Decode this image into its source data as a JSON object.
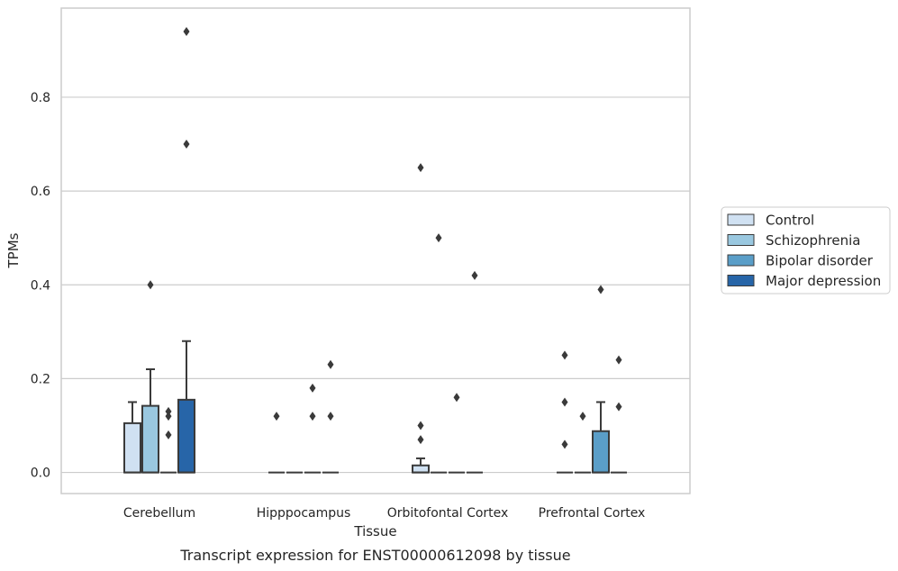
{
  "chart_data": {
    "type": "box",
    "xlabel": "Tissue",
    "ylabel": "TPMs",
    "caption": "Transcript expression for ENST00000612098 by tissue",
    "ylim": [
      -0.045,
      0.99
    ],
    "yticks": [
      "0.0",
      "0.2",
      "0.4",
      "0.6",
      "0.8"
    ],
    "yticks_values": [
      0.0,
      0.2,
      0.4,
      0.6,
      0.8
    ],
    "grid": "horizontal",
    "legend_position": "right",
    "categories": [
      "Cerebellum",
      "Hipppocampus",
      "Orbitofontal Cortex",
      "Prefrontal Cortex"
    ],
    "series": [
      {
        "name": "Control",
        "color": "#d0e1f2",
        "boxes": [
          {
            "q1": 0.0,
            "median": 0.0,
            "q3": 0.105,
            "whisker_low": 0.0,
            "whisker_high": 0.15,
            "outliers": []
          },
          {
            "q1": 0.0,
            "median": 0.0,
            "q3": 0.0,
            "whisker_low": 0.0,
            "whisker_high": 0.0,
            "outliers": [
              0.12
            ]
          },
          {
            "q1": 0.0,
            "median": 0.0,
            "q3": 0.015,
            "whisker_low": 0.0,
            "whisker_high": 0.03,
            "outliers": [
              0.07,
              0.1,
              0.65
            ]
          },
          {
            "q1": 0.0,
            "median": 0.0,
            "q3": 0.0,
            "whisker_low": 0.0,
            "whisker_high": 0.0,
            "outliers": [
              0.06,
              0.15,
              0.25
            ]
          }
        ]
      },
      {
        "name": "Schizophrenia",
        "color": "#9ac8e0",
        "boxes": [
          {
            "q1": 0.0,
            "median": 0.0,
            "q3": 0.142,
            "whisker_low": 0.0,
            "whisker_high": 0.22,
            "outliers": [
              0.4
            ]
          },
          {
            "q1": 0.0,
            "median": 0.0,
            "q3": 0.0,
            "whisker_low": 0.0,
            "whisker_high": 0.0,
            "outliers": []
          },
          {
            "q1": 0.0,
            "median": 0.0,
            "q3": 0.0,
            "whisker_low": 0.0,
            "whisker_high": 0.0,
            "outliers": [
              0.5
            ]
          },
          {
            "q1": 0.0,
            "median": 0.0,
            "q3": 0.0,
            "whisker_low": 0.0,
            "whisker_high": 0.0,
            "outliers": [
              0.12
            ]
          }
        ]
      },
      {
        "name": "Bipolar disorder",
        "color": "#5a9ec8",
        "boxes": [
          {
            "q1": 0.0,
            "median": 0.0,
            "q3": 0.0,
            "whisker_low": 0.0,
            "whisker_high": 0.0,
            "outliers": [
              0.08,
              0.12,
              0.13
            ]
          },
          {
            "q1": 0.0,
            "median": 0.0,
            "q3": 0.0,
            "whisker_low": 0.0,
            "whisker_high": 0.0,
            "outliers": [
              0.12,
              0.18
            ]
          },
          {
            "q1": 0.0,
            "median": 0.0,
            "q3": 0.0,
            "whisker_low": 0.0,
            "whisker_high": 0.0,
            "outliers": [
              0.16
            ]
          },
          {
            "q1": 0.0,
            "median": 0.0,
            "q3": 0.088,
            "whisker_low": 0.0,
            "whisker_high": 0.15,
            "outliers": [
              0.39
            ]
          }
        ]
      },
      {
        "name": "Major depression",
        "color": "#2765a8",
        "boxes": [
          {
            "q1": 0.0,
            "median": 0.0,
            "q3": 0.155,
            "whisker_low": 0.0,
            "whisker_high": 0.28,
            "outliers": [
              0.7,
              0.94
            ]
          },
          {
            "q1": 0.0,
            "median": 0.0,
            "q3": 0.0,
            "whisker_low": 0.0,
            "whisker_high": 0.0,
            "outliers": [
              0.12,
              0.23
            ]
          },
          {
            "q1": 0.0,
            "median": 0.0,
            "q3": 0.0,
            "whisker_low": 0.0,
            "whisker_high": 0.0,
            "outliers": [
              0.42
            ]
          },
          {
            "q1": 0.0,
            "median": 0.0,
            "q3": 0.0,
            "whisker_low": 0.0,
            "whisker_high": 0.0,
            "outliers": [
              0.14,
              0.24
            ]
          }
        ]
      }
    ]
  }
}
